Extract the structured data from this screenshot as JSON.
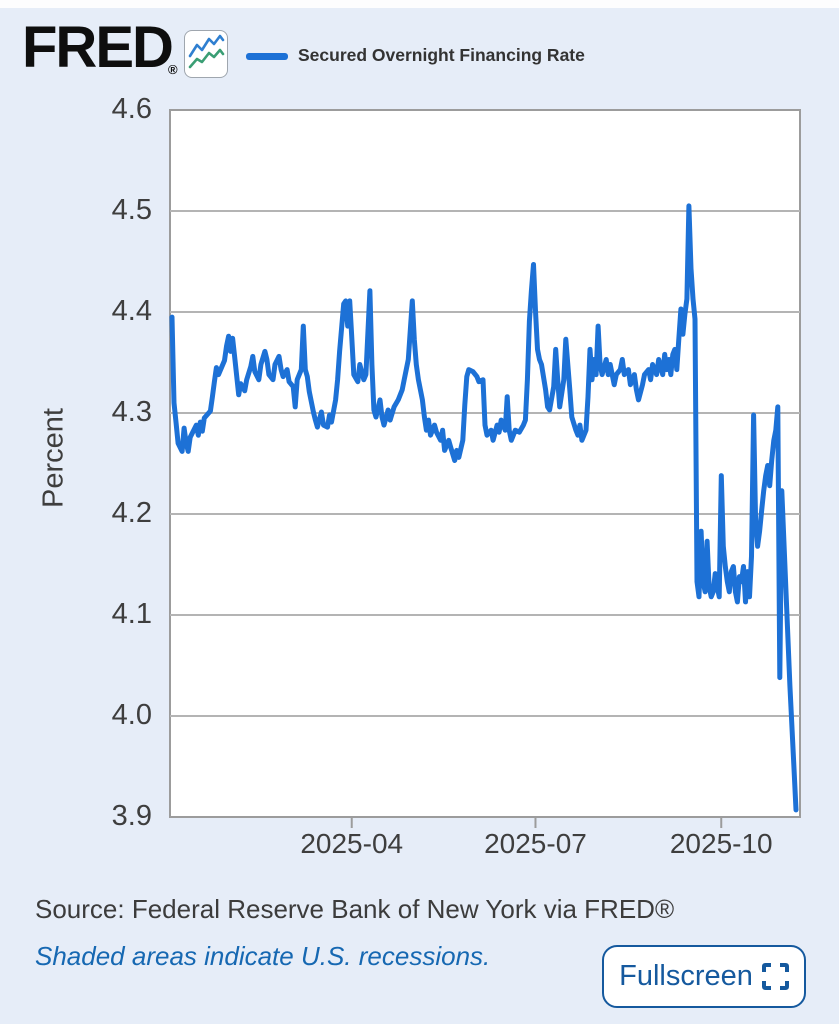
{
  "header": {
    "logo_text": "FRED",
    "logo_reg": "®",
    "legend_label": "Secured Overnight Financing Rate"
  },
  "footer": {
    "source": "Source: Federal Reserve Bank of New York via FRED®",
    "recession_note": "Shaded areas indicate U.S. recessions.",
    "fullscreen_label": "Fullscreen"
  },
  "colors": {
    "page_bg": "#e6edf8",
    "plot_bg": "#ffffff",
    "plot_border": "#9c9c9c",
    "gridline": "#b4b4b4",
    "line": "#1d71d6",
    "badge_line_blue": "#2f7fd0",
    "badge_line_green": "#3a9e74",
    "accent_blue": "#15599e",
    "note_blue": "#1668b2",
    "text_dark": "#3c3c3c"
  },
  "chart_data": {
    "type": "line",
    "title": "",
    "ylabel": "Percent",
    "series": [
      {
        "name": "Secured Overnight Financing Rate",
        "color": "#1d71d6"
      }
    ],
    "grid": "horizontal",
    "legend_position": "top",
    "x_unit": "days since 2025-01-01",
    "x_domain_days": [
      0,
      312
    ],
    "x_ticks": [
      {
        "day": 90,
        "label": "2025-04"
      },
      {
        "day": 181,
        "label": "2025-07"
      },
      {
        "day": 273,
        "label": "2025-10"
      }
    ],
    "y_min": 3.9,
    "y_max": 4.6,
    "y_ticks": [
      "4.6",
      "4.5",
      "4.4",
      "4.3",
      "4.2",
      "4.1",
      "4.0",
      "3.9"
    ],
    "points": [
      [
        1,
        4.395
      ],
      [
        2,
        4.31
      ],
      [
        3,
        4.29
      ],
      [
        4,
        4.27
      ],
      [
        6,
        4.262
      ],
      [
        7,
        4.285
      ],
      [
        8,
        4.27
      ],
      [
        9,
        4.262
      ],
      [
        10,
        4.276
      ],
      [
        13,
        4.288
      ],
      [
        14,
        4.278
      ],
      [
        15,
        4.291
      ],
      [
        16,
        4.282
      ],
      [
        17,
        4.295
      ],
      [
        20,
        4.302
      ],
      [
        21,
        4.316
      ],
      [
        22,
        4.331
      ],
      [
        23,
        4.345
      ],
      [
        24,
        4.338
      ],
      [
        27,
        4.352
      ],
      [
        28,
        4.366
      ],
      [
        29,
        4.376
      ],
      [
        30,
        4.361
      ],
      [
        31,
        4.374
      ],
      [
        32,
        4.356
      ],
      [
        34,
        4.318
      ],
      [
        35,
        4.329
      ],
      [
        37,
        4.322
      ],
      [
        38,
        4.333
      ],
      [
        40,
        4.346
      ],
      [
        41,
        4.356
      ],
      [
        42,
        4.341
      ],
      [
        44,
        4.333
      ],
      [
        45,
        4.348
      ],
      [
        47,
        4.361
      ],
      [
        48,
        4.353
      ],
      [
        49,
        4.338
      ],
      [
        51,
        4.333
      ],
      [
        52,
        4.348
      ],
      [
        54,
        4.356
      ],
      [
        55,
        4.343
      ],
      [
        56,
        4.336
      ],
      [
        58,
        4.343
      ],
      [
        59,
        4.331
      ],
      [
        61,
        4.326
      ],
      [
        62,
        4.306
      ],
      [
        63,
        4.333
      ],
      [
        65,
        4.343
      ],
      [
        66,
        4.386
      ],
      [
        67,
        4.343
      ],
      [
        68,
        4.336
      ],
      [
        69,
        4.321
      ],
      [
        71,
        4.301
      ],
      [
        72,
        4.293
      ],
      [
        73,
        4.286
      ],
      [
        75,
        4.301
      ],
      [
        76,
        4.288
      ],
      [
        78,
        4.286
      ],
      [
        79,
        4.298
      ],
      [
        80,
        4.291
      ],
      [
        82,
        4.313
      ],
      [
        83,
        4.333
      ],
      [
        84,
        4.361
      ],
      [
        86,
        4.408
      ],
      [
        87,
        4.411
      ],
      [
        88,
        4.386
      ],
      [
        89,
        4.411
      ],
      [
        90,
        4.376
      ],
      [
        91,
        4.338
      ],
      [
        93,
        4.331
      ],
      [
        94,
        4.348
      ],
      [
        96,
        4.333
      ],
      [
        97,
        4.338
      ],
      [
        99,
        4.421
      ],
      [
        100,
        4.348
      ],
      [
        101,
        4.303
      ],
      [
        102,
        4.296
      ],
      [
        104,
        4.313
      ],
      [
        105,
        4.296
      ],
      [
        106,
        4.288
      ],
      [
        108,
        4.303
      ],
      [
        109,
        4.293
      ],
      [
        111,
        4.306
      ],
      [
        113,
        4.313
      ],
      [
        115,
        4.323
      ],
      [
        116,
        4.333
      ],
      [
        118,
        4.353
      ],
      [
        120,
        4.411
      ],
      [
        121,
        4.373
      ],
      [
        122,
        4.348
      ],
      [
        123,
        4.333
      ],
      [
        125,
        4.313
      ],
      [
        126,
        4.296
      ],
      [
        127,
        4.283
      ],
      [
        128,
        4.293
      ],
      [
        129,
        4.278
      ],
      [
        131,
        4.288
      ],
      [
        132,
        4.281
      ],
      [
        134,
        4.273
      ],
      [
        135,
        4.283
      ],
      [
        136,
        4.263
      ],
      [
        138,
        4.273
      ],
      [
        139,
        4.266
      ],
      [
        141,
        4.253
      ],
      [
        142,
        4.263
      ],
      [
        143,
        4.256
      ],
      [
        145,
        4.273
      ],
      [
        146,
        4.308
      ],
      [
        147,
        4.336
      ],
      [
        148,
        4.343
      ],
      [
        150,
        4.341
      ],
      [
        152,
        4.336
      ],
      [
        153,
        4.331
      ],
      [
        155,
        4.333
      ],
      [
        156,
        4.288
      ],
      [
        157,
        4.278
      ],
      [
        159,
        4.283
      ],
      [
        160,
        4.273
      ],
      [
        162,
        4.288
      ],
      [
        163,
        4.281
      ],
      [
        164,
        4.293
      ],
      [
        166,
        4.283
      ],
      [
        167,
        4.316
      ],
      [
        168,
        4.283
      ],
      [
        169,
        4.273
      ],
      [
        171,
        4.283
      ],
      [
        173,
        4.281
      ],
      [
        175,
        4.288
      ],
      [
        176,
        4.293
      ],
      [
        177,
        4.333
      ],
      [
        178,
        4.391
      ],
      [
        179,
        4.421
      ],
      [
        180,
        4.447
      ],
      [
        181,
        4.401
      ],
      [
        182,
        4.363
      ],
      [
        183,
        4.353
      ],
      [
        184,
        4.348
      ],
      [
        186,
        4.323
      ],
      [
        187,
        4.306
      ],
      [
        188,
        4.303
      ],
      [
        190,
        4.326
      ],
      [
        191,
        4.363
      ],
      [
        192,
        4.333
      ],
      [
        193,
        4.306
      ],
      [
        195,
        4.333
      ],
      [
        196,
        4.373
      ],
      [
        197,
        4.348
      ],
      [
        198,
        4.323
      ],
      [
        199,
        4.296
      ],
      [
        201,
        4.283
      ],
      [
        202,
        4.278
      ],
      [
        203,
        4.288
      ],
      [
        204,
        4.273
      ],
      [
        206,
        4.283
      ],
      [
        207,
        4.316
      ],
      [
        208,
        4.363
      ],
      [
        209,
        4.333
      ],
      [
        210,
        4.353
      ],
      [
        211,
        4.338
      ],
      [
        212,
        4.386
      ],
      [
        213,
        4.348
      ],
      [
        214,
        4.338
      ],
      [
        216,
        4.353
      ],
      [
        217,
        4.338
      ],
      [
        218,
        4.348
      ],
      [
        220,
        4.328
      ],
      [
        221,
        4.338
      ],
      [
        223,
        4.343
      ],
      [
        224,
        4.353
      ],
      [
        225,
        4.338
      ],
      [
        227,
        4.343
      ],
      [
        228,
        4.328
      ],
      [
        230,
        4.338
      ],
      [
        231,
        4.323
      ],
      [
        232,
        4.313
      ],
      [
        234,
        4.328
      ],
      [
        235,
        4.338
      ],
      [
        237,
        4.343
      ],
      [
        238,
        4.333
      ],
      [
        239,
        4.348
      ],
      [
        241,
        4.338
      ],
      [
        242,
        4.353
      ],
      [
        244,
        4.338
      ],
      [
        245,
        4.358
      ],
      [
        246,
        4.343
      ],
      [
        247,
        4.353
      ],
      [
        248,
        4.338
      ],
      [
        249,
        4.358
      ],
      [
        250,
        4.363
      ],
      [
        251,
        4.343
      ],
      [
        252,
        4.373
      ],
      [
        253,
        4.403
      ],
      [
        254,
        4.378
      ],
      [
        255,
        4.398
      ],
      [
        256,
        4.413
      ],
      [
        257,
        4.505
      ],
      [
        258,
        4.443
      ],
      [
        259,
        4.413
      ],
      [
        260,
        4.393
      ],
      [
        261,
        4.133
      ],
      [
        262,
        4.118
      ],
      [
        263,
        4.183
      ],
      [
        264,
        4.133
      ],
      [
        265,
        4.123
      ],
      [
        266,
        4.173
      ],
      [
        267,
        4.128
      ],
      [
        268,
        4.118
      ],
      [
        269,
        4.123
      ],
      [
        270,
        4.141
      ],
      [
        271,
        4.128
      ],
      [
        272,
        4.118
      ],
      [
        273,
        4.238
      ],
      [
        274,
        4.168
      ],
      [
        275,
        4.148
      ],
      [
        276,
        4.133
      ],
      [
        277,
        4.123
      ],
      [
        278,
        4.143
      ],
      [
        279,
        4.148
      ],
      [
        280,
        4.123
      ],
      [
        281,
        4.113
      ],
      [
        282,
        4.138
      ],
      [
        283,
        4.133
      ],
      [
        284,
        4.148
      ],
      [
        285,
        4.113
      ],
      [
        286,
        4.143
      ],
      [
        287,
        4.118
      ],
      [
        288,
        4.158
      ],
      [
        289,
        4.298
      ],
      [
        290,
        4.193
      ],
      [
        291,
        4.168
      ],
      [
        292,
        4.183
      ],
      [
        293,
        4.203
      ],
      [
        294,
        4.223
      ],
      [
        295,
        4.238
      ],
      [
        296,
        4.248
      ],
      [
        297,
        4.228
      ],
      [
        298,
        4.253
      ],
      [
        299,
        4.273
      ],
      [
        300,
        4.283
      ],
      [
        301,
        4.306
      ],
      [
        302,
        4.038
      ],
      [
        303,
        4.223
      ],
      [
        307,
        4.03
      ],
      [
        309,
        3.95
      ],
      [
        310,
        3.907
      ]
    ]
  }
}
